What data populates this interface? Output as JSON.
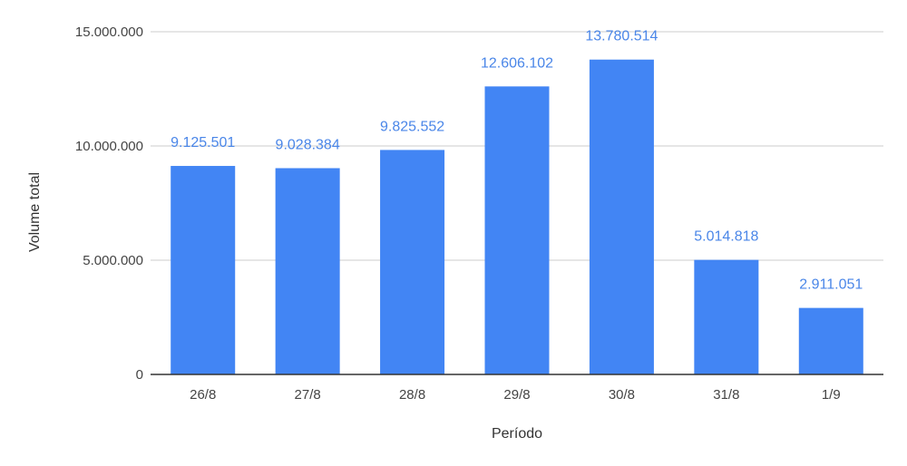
{
  "chart_data": {
    "type": "bar",
    "categories": [
      "26/8",
      "27/8",
      "28/8",
      "29/8",
      "30/8",
      "31/8",
      "1/9"
    ],
    "values": [
      9125501,
      9028384,
      9825552,
      12606102,
      13780514,
      5014818,
      2911051
    ],
    "data_labels": [
      "9.125.501",
      "9.028.384",
      "9.825.552",
      "12.606.102",
      "13.780.514",
      "5.014.818",
      "2.911.051"
    ],
    "yticks": [
      0,
      5000000,
      10000000,
      15000000
    ],
    "ytick_labels": [
      "0",
      "5.000.000",
      "10.000.000",
      "15.000.000"
    ],
    "ylim": [
      0,
      15000000
    ],
    "xlabel": "Período",
    "ylabel": "Volume total",
    "title": "",
    "grid": true,
    "legend": "none",
    "colors": {
      "bar": "#4285f4",
      "label": "#4a86e8",
      "grid": "#cccccc",
      "axis": "#333333"
    }
  }
}
